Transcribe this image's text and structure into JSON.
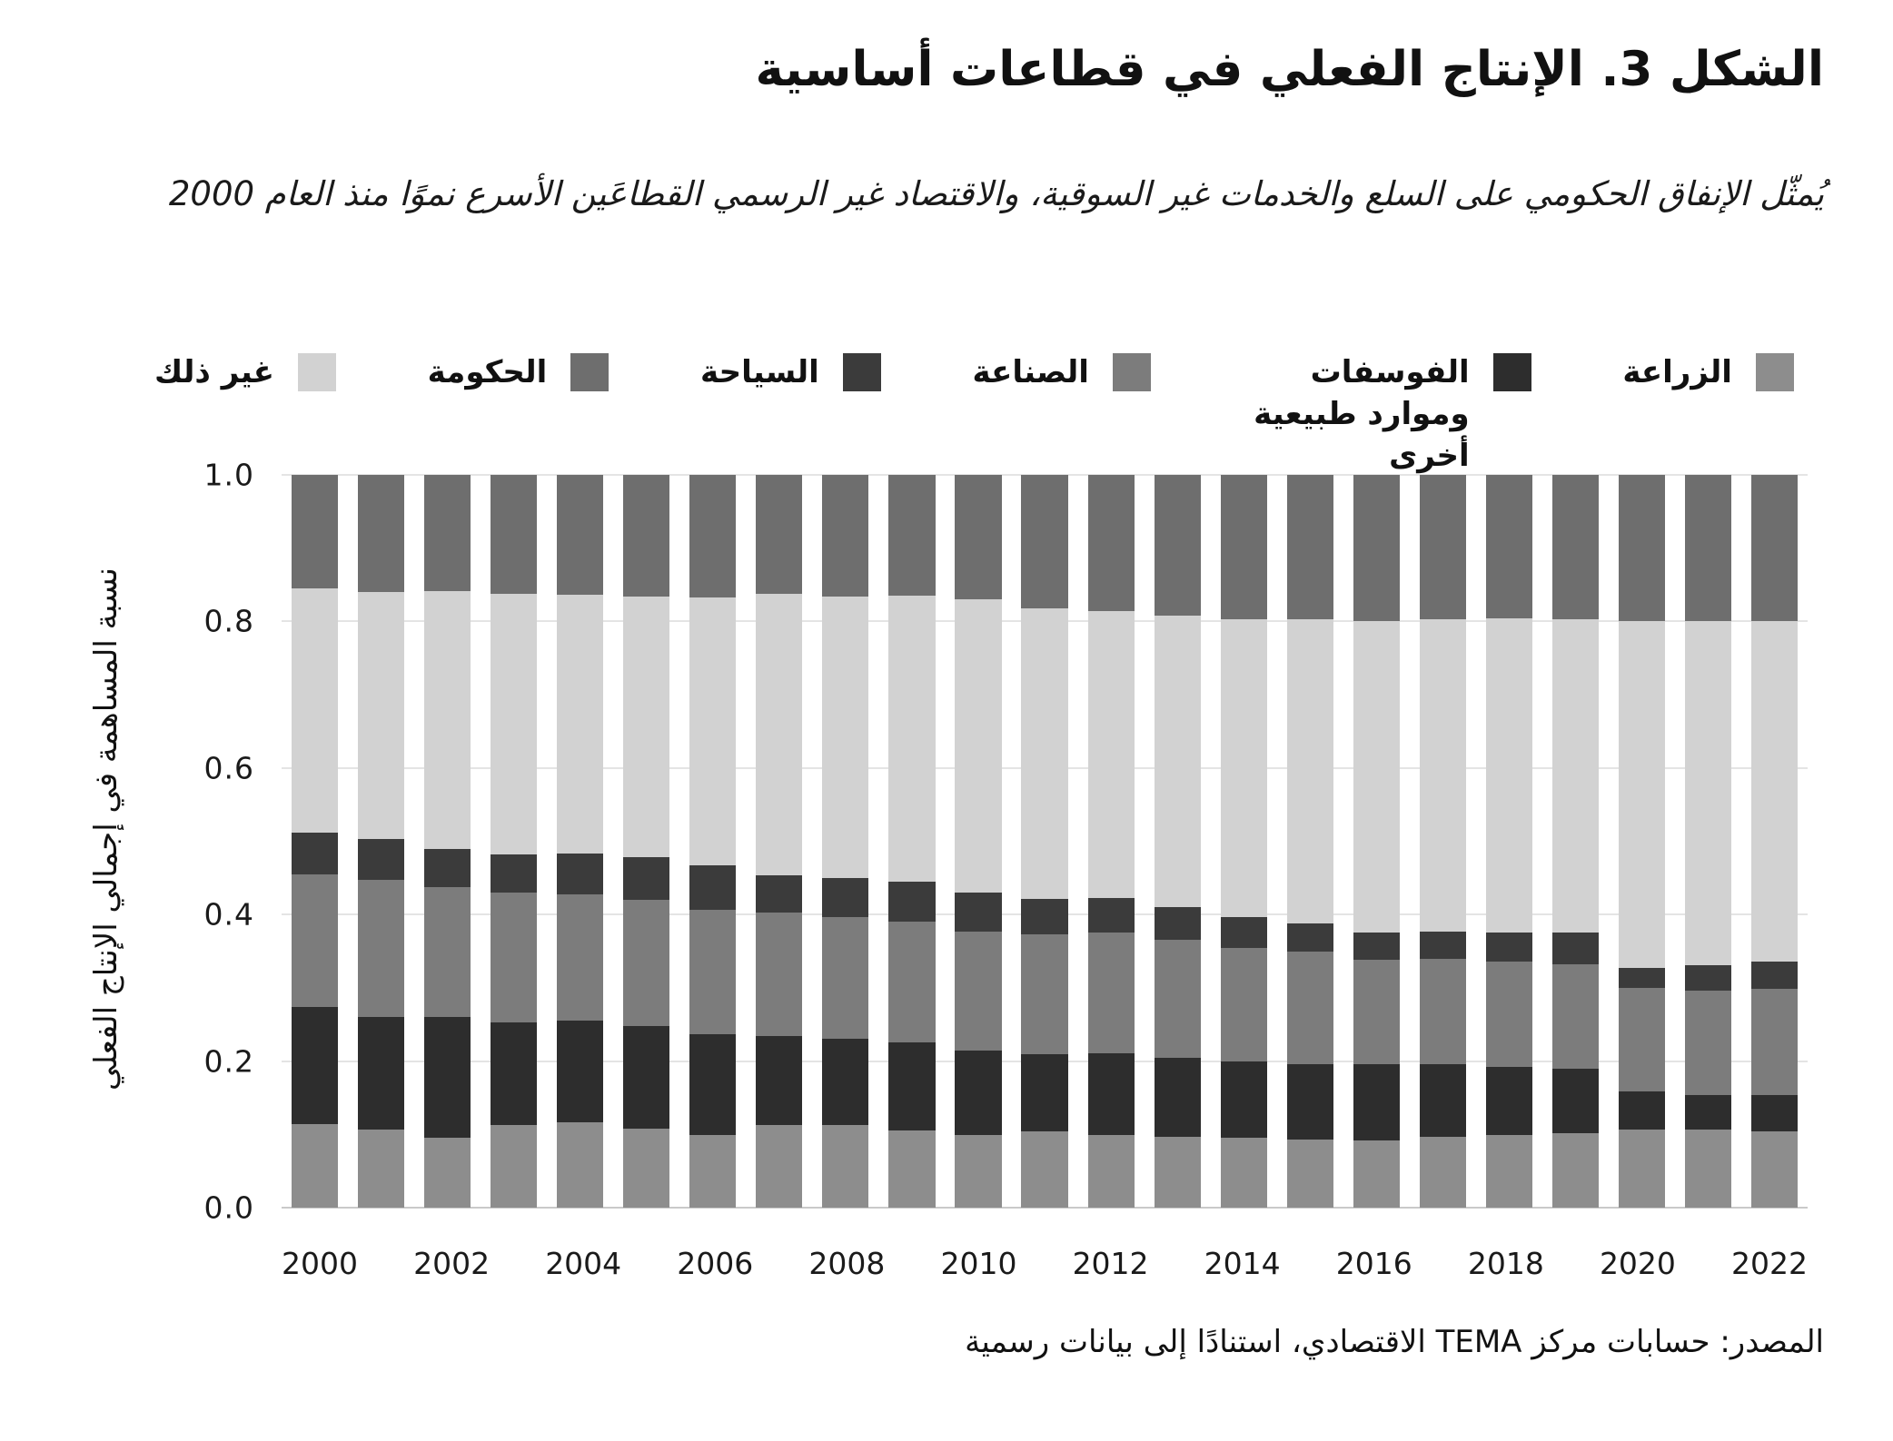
{
  "figure": {
    "title": "الشكل 3. الإنتاج الفعلي في قطاعات أساسية",
    "subtitle": "يُمثّل الإنفاق الحكومي على السلع والخدمات غير السوقية، والاقتصاد غير الرسمي القطاعَين الأسرع نموًا منذ العام 2000",
    "source": "المصدر: حسابات مركز TEMA الاقتصادي، استنادًا إلى بيانات رسمية"
  },
  "chart_data": {
    "type": "bar",
    "stacked": true,
    "normalized": true,
    "title": "الشكل 3. الإنتاج الفعلي في قطاعات أساسية",
    "ylabel": "نسبة المساهمة في إجمالي الإنتاج الفعلي",
    "xlabel": "",
    "ylim": [
      0,
      1.0
    ],
    "grid": "horizontal",
    "legend_position": "top",
    "categories": [
      2000,
      2001,
      2002,
      2003,
      2004,
      2005,
      2006,
      2007,
      2008,
      2009,
      2010,
      2011,
      2012,
      2013,
      2014,
      2015,
      2016,
      2017,
      2018,
      2019,
      2020,
      2021,
      2022
    ],
    "x_tick_labels": [
      "2000",
      "2002",
      "2004",
      "2006",
      "2008",
      "2010",
      "2012",
      "2014",
      "2016",
      "2018",
      "2020",
      "2022"
    ],
    "y_ticks": [
      0,
      0.2,
      0.4,
      0.6,
      0.8,
      1.0
    ],
    "y_tick_labels": [
      "0.0",
      "0.2",
      "0.4",
      "0.6",
      "0.8",
      "1.0"
    ],
    "series": [
      {
        "key": "agriculture",
        "name": "الزراعة",
        "color": "#8d8d8d",
        "values": [
          0.114,
          0.107,
          0.095,
          0.113,
          0.116,
          0.108,
          0.099,
          0.113,
          0.113,
          0.105,
          0.099,
          0.104,
          0.099,
          0.097,
          0.095,
          0.093,
          0.092,
          0.097,
          0.099,
          0.102,
          0.107,
          0.106,
          0.104
        ]
      },
      {
        "key": "phosphates",
        "name": "الفوسفات وموارد طبيعية أخرى",
        "color": "#2d2d2d",
        "values": [
          0.16,
          0.153,
          0.165,
          0.14,
          0.139,
          0.14,
          0.138,
          0.121,
          0.117,
          0.12,
          0.115,
          0.105,
          0.112,
          0.108,
          0.104,
          0.103,
          0.104,
          0.099,
          0.093,
          0.087,
          0.051,
          0.048,
          0.049
        ]
      },
      {
        "key": "industry",
        "name": "الصناعة",
        "color": "#7c7c7c",
        "values": [
          0.181,
          0.187,
          0.178,
          0.177,
          0.173,
          0.172,
          0.17,
          0.169,
          0.166,
          0.165,
          0.163,
          0.164,
          0.164,
          0.16,
          0.155,
          0.153,
          0.142,
          0.143,
          0.144,
          0.143,
          0.142,
          0.142,
          0.145
        ]
      },
      {
        "key": "tourism",
        "name": "السياحة",
        "color": "#3b3b3b",
        "values": [
          0.057,
          0.056,
          0.052,
          0.052,
          0.055,
          0.058,
          0.06,
          0.05,
          0.054,
          0.055,
          0.053,
          0.048,
          0.048,
          0.045,
          0.042,
          0.039,
          0.038,
          0.038,
          0.04,
          0.044,
          0.027,
          0.035,
          0.038
        ]
      },
      {
        "key": "other",
        "name": "غير ذلك",
        "color": "#d2d2d2",
        "values": [
          0.333,
          0.337,
          0.352,
          0.356,
          0.353,
          0.356,
          0.366,
          0.385,
          0.384,
          0.39,
          0.4,
          0.397,
          0.391,
          0.398,
          0.407,
          0.415,
          0.424,
          0.426,
          0.428,
          0.427,
          0.473,
          0.469,
          0.464
        ]
      },
      {
        "key": "government",
        "name": "الحكومة",
        "color": "#6e6e6e",
        "values": [
          0.155,
          0.16,
          0.158,
          0.162,
          0.164,
          0.166,
          0.167,
          0.162,
          0.166,
          0.165,
          0.17,
          0.182,
          0.186,
          0.192,
          0.197,
          0.197,
          0.2,
          0.197,
          0.196,
          0.197,
          0.2,
          0.2,
          0.2
        ]
      }
    ],
    "legend_display_order": [
      "other",
      "government",
      "tourism",
      "industry",
      "phosphates",
      "agriculture"
    ]
  }
}
